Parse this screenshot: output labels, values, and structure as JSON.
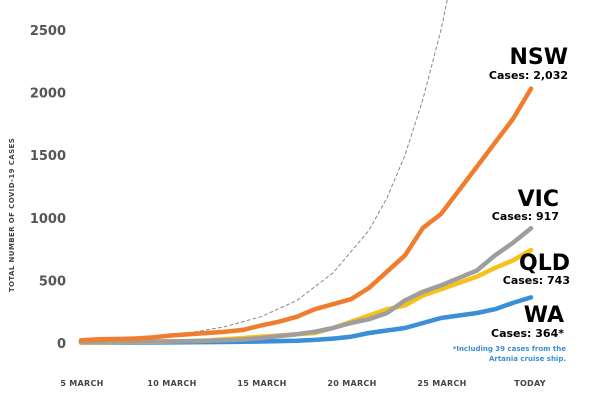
{
  "chart_data": {
    "type": "line",
    "xlabel": "",
    "ylabel": "TOTAL NUMBER OF COVID-19 CASES",
    "x_tick_labels": [
      "5 MARCH",
      "10 MARCH",
      "15 MARCH",
      "20 MARCH",
      "25 MARCH",
      "TODAY"
    ],
    "y_ticks": [
      0,
      500,
      1000,
      1500,
      2000,
      2500
    ],
    "ylim": [
      0,
      2500
    ],
    "xlim": [
      4,
      29
    ],
    "grid": false,
    "series": [
      {
        "name": "NSW",
        "cases_label": "Cases: 2,032",
        "color": "#f07d2e",
        "x": [
          4,
          5,
          6,
          7,
          8,
          9,
          10,
          11,
          12,
          13,
          14,
          15,
          16,
          17,
          18,
          19,
          20,
          21,
          22,
          23,
          24,
          25,
          26,
          27,
          28,
          29
        ],
        "y": [
          22,
          30,
          32,
          36,
          45,
          60,
          70,
          80,
          90,
          105,
          140,
          170,
          210,
          270,
          310,
          350,
          440,
          570,
          700,
          920,
          1030,
          1220,
          1410,
          1600,
          1790,
          2032
        ]
      },
      {
        "name": "VIC",
        "cases_label": "Cases: 917",
        "color": "#9e9e9e",
        "x": [
          4,
          5,
          6,
          7,
          8,
          9,
          10,
          11,
          12,
          13,
          14,
          15,
          16,
          17,
          18,
          19,
          20,
          21,
          22,
          23,
          24,
          25,
          26,
          27,
          28,
          29
        ],
        "y": [
          10,
          11,
          12,
          12,
          12,
          13,
          15,
          18,
          22,
          28,
          40,
          55,
          70,
          90,
          120,
          160,
          190,
          240,
          340,
          410,
          460,
          520,
          580,
          700,
          800,
          917
        ]
      },
      {
        "name": "QLD",
        "cases_label": "Cases: 743",
        "color": "#f7c11a",
        "x": [
          4,
          5,
          6,
          7,
          8,
          9,
          10,
          11,
          12,
          13,
          14,
          15,
          16,
          17,
          18,
          19,
          20,
          21,
          22,
          23,
          24,
          25,
          26,
          27,
          28,
          29
        ],
        "y": [
          5,
          6,
          7,
          8,
          10,
          12,
          15,
          20,
          30,
          40,
          50,
          60,
          70,
          80,
          120,
          170,
          220,
          270,
          300,
          380,
          430,
          480,
          530,
          600,
          660,
          743
        ]
      },
      {
        "name": "WA",
        "cases_label": "Cases: 364*",
        "color": "#3b8fd6",
        "x": [
          4,
          5,
          6,
          7,
          8,
          9,
          10,
          11,
          12,
          13,
          14,
          15,
          16,
          17,
          18,
          19,
          20,
          21,
          22,
          23,
          24,
          25,
          26,
          27,
          28,
          29
        ],
        "y": [
          3,
          3,
          3,
          3,
          4,
          5,
          6,
          7,
          8,
          10,
          12,
          15,
          18,
          25,
          35,
          50,
          80,
          100,
          120,
          160,
          200,
          220,
          240,
          270,
          320,
          364
        ]
      },
      {
        "color": "#888888",
        "x": [
          4,
          6,
          8,
          10,
          12,
          14,
          16,
          18,
          20,
          21,
          22,
          23,
          24,
          25
        ],
        "y": [
          18,
          28,
          50,
          80,
          130,
          210,
          340,
          560,
          900,
          1160,
          1500,
          1950,
          2500,
          3200
        ]
      }
    ],
    "annotations": {
      "wa_note_line1": "*Including 39 cases from the",
      "wa_note_line2": "Artania cruise ship."
    }
  }
}
